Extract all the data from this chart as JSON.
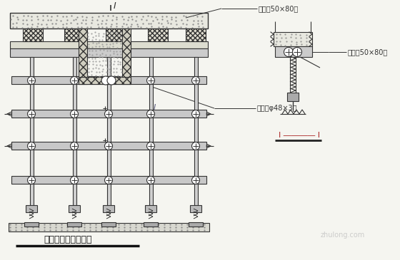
{
  "bg_color": "#f5f5f0",
  "line_color": "#333333",
  "title": "顶板模板支撑示意图",
  "label_mufang_top": "木方（50×80）",
  "label_ganguan": "钓管（φ48×3）",
  "label_mufang_right": "木方（50×80）",
  "label_section": "I ―――― I",
  "watermark": "zhulong.com",
  "figsize": [
    5.6,
    3.65
  ],
  "dpi": 100
}
